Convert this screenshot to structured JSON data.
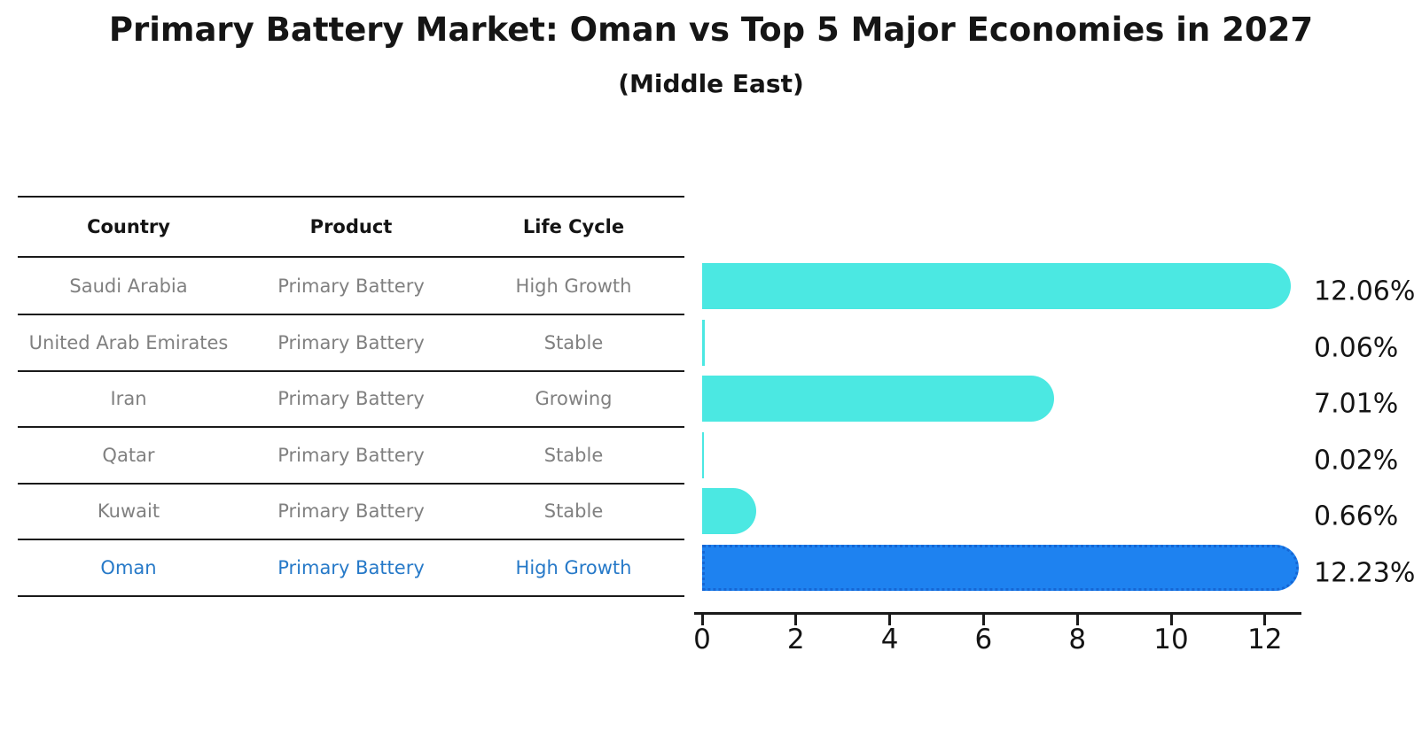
{
  "title": "Primary Battery Market: Oman vs Top 5 Major Economies in 2027",
  "subtitle": "(Middle East)",
  "table": {
    "headers": [
      "Country",
      "Product",
      "Life Cycle"
    ]
  },
  "rows": [
    {
      "country": "Saudi Arabia",
      "product": "Primary Battery",
      "life_cycle": "High Growth",
      "value": 12.06,
      "label": "12.06%",
      "highlight": false
    },
    {
      "country": "United Arab Emirates",
      "product": "Primary Battery",
      "life_cycle": "Stable",
      "value": 0.06,
      "label": "0.06%",
      "highlight": false
    },
    {
      "country": "Iran",
      "product": "Primary Battery",
      "life_cycle": "Growing",
      "value": 7.01,
      "label": "7.01%",
      "highlight": false
    },
    {
      "country": "Qatar",
      "product": "Primary Battery",
      "life_cycle": "Stable",
      "value": 0.02,
      "label": "0.02%",
      "highlight": false
    },
    {
      "country": "Kuwait",
      "product": "Primary Battery",
      "life_cycle": "Stable",
      "value": 0.66,
      "label": "0.66%",
      "highlight": false
    },
    {
      "country": "Oman",
      "product": "Primary Battery",
      "life_cycle": "High Growth",
      "value": 12.23,
      "label": "12.23%",
      "highlight": true
    }
  ],
  "chart_data": {
    "type": "bar",
    "orientation": "horizontal",
    "title": "Primary Battery Market: Oman vs Top 5 Major Economies in 2027",
    "subtitle": "(Middle East)",
    "categories": [
      "Saudi Arabia",
      "United Arab Emirates",
      "Iran",
      "Qatar",
      "Kuwait",
      "Oman"
    ],
    "values": [
      12.06,
      0.06,
      7.01,
      0.02,
      0.66,
      12.23
    ],
    "value_labels": [
      "12.06%",
      "0.06%",
      "7.01%",
      "0.02%",
      "0.66%",
      "12.23%"
    ],
    "products": [
      "Primary Battery",
      "Primary Battery",
      "Primary Battery",
      "Primary Battery",
      "Primary Battery",
      "Primary Battery"
    ],
    "life_cycles": [
      "High Growth",
      "Stable",
      "Growing",
      "Stable",
      "Stable",
      "High Growth"
    ],
    "highlight_category": "Oman",
    "xlabel": "",
    "ylabel": "",
    "xlim": [
      0,
      12.8
    ],
    "xticks": [
      0,
      2,
      4,
      6,
      8,
      10,
      12
    ],
    "grid": false,
    "legend": "none"
  },
  "colors": {
    "bar_default": "#4BE8E2",
    "bar_highlight": "#1E82F0",
    "bar_highlight_border": "#1566D4",
    "row_text": "#808080",
    "highlight_text": "#2679C8",
    "axis_and_lines": "#1a1a1a"
  }
}
